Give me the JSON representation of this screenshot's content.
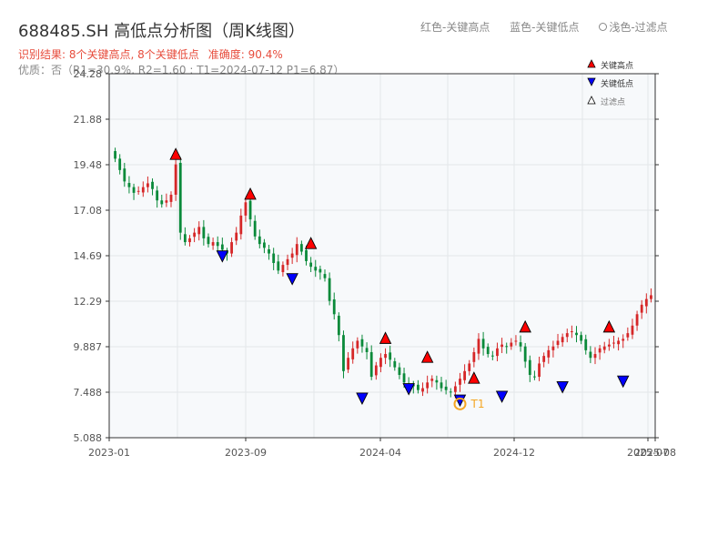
{
  "header": {
    "title": "688485.SH 高低点分析图（周K线图）",
    "legend_red": "红色-关键高点",
    "legend_blue": "蓝色-关键低点",
    "legend_light": "浅色-过滤点",
    "result": "识别结果: 8个关键高点, 8个关键低点",
    "accuracy": "准确度: 90.4%",
    "quality": "优质：否（R1=30.9%, R2=1.60 ; T1=2024-07-12 P1=6.87）"
  },
  "chart_data": {
    "type": "candlestick",
    "yticks": [
      "24.28",
      "21.88",
      "19.48",
      "17.08",
      "14.69",
      "12.29",
      "9.887",
      "7.488",
      "5.088"
    ],
    "ylim": [
      5.088,
      24.28
    ],
    "xlabels": [
      "2023-01",
      "2023-09",
      "2024-04",
      "2024-12",
      "2025-07",
      "2025-08"
    ],
    "legend": [
      "关键高点",
      "关键低点",
      "过滤点"
    ],
    "t1_label": "T1",
    "colors": {
      "up": "#d62728",
      "down": "#0a8a3a",
      "high": "#ff0000",
      "low": "#0000ff",
      "t1": "#f5a623"
    },
    "closes": [
      19.8,
      19.2,
      18.6,
      18.3,
      18.0,
      18.1,
      18.3,
      18.5,
      18.2,
      17.6,
      17.4,
      17.6,
      17.9,
      19.5,
      15.9,
      15.4,
      15.6,
      15.9,
      16.2,
      15.6,
      15.3,
      15.4,
      15.2,
      15.0,
      14.8,
      15.4,
      15.9,
      16.8,
      17.5,
      16.6,
      15.7,
      15.3,
      15.1,
      14.8,
      14.3,
      13.9,
      14.2,
      14.5,
      14.8,
      15.3,
      14.9,
      14.4,
      14.1,
      13.9,
      13.8,
      13.5,
      12.3,
      11.6,
      10.5,
      8.6,
      9.3,
      9.8,
      10.2,
      9.9,
      9.6,
      8.3,
      8.9,
      9.3,
      9.5,
      9.2,
      8.8,
      8.4,
      8.0,
      7.9,
      7.8,
      7.6,
      7.7,
      8.0,
      8.2,
      8.0,
      7.7,
      7.6,
      7.5,
      7.8,
      8.2,
      8.6,
      9.0,
      9.6,
      10.3,
      9.8,
      9.5,
      9.4,
      9.8,
      10.0,
      9.9,
      10.1,
      10.2,
      9.9,
      9.1,
      8.4,
      8.3,
      9.0,
      9.4,
      9.7,
      9.9,
      10.2,
      10.4,
      10.6,
      10.7,
      10.5,
      10.2,
      9.7,
      9.3,
      9.5,
      9.8,
      9.9,
      10.0,
      10.1,
      10.2,
      10.3,
      10.6,
      11.0,
      11.6,
      12.1,
      12.4,
      12.6
    ],
    "key_highs": [
      {
        "i": 13,
        "v": 20.0
      },
      {
        "i": 29,
        "v": 17.9
      },
      {
        "i": 42,
        "v": 15.3
      },
      {
        "i": 58,
        "v": 10.3
      },
      {
        "i": 67,
        "v": 9.3
      },
      {
        "i": 77,
        "v": 8.2
      },
      {
        "i": 88,
        "v": 10.9
      },
      {
        "i": 106,
        "v": 10.9
      }
    ],
    "key_lows": [
      {
        "i": 23,
        "v": 14.7
      },
      {
        "i": 38,
        "v": 13.5
      },
      {
        "i": 53,
        "v": 7.2
      },
      {
        "i": 63,
        "v": 7.7
      },
      {
        "i": 74,
        "v": 7.1
      },
      {
        "i": 83,
        "v": 7.3
      },
      {
        "i": 96,
        "v": 7.8
      },
      {
        "i": 109,
        "v": 8.1
      }
    ],
    "t1": {
      "i": 74,
      "v": 6.87
    }
  }
}
